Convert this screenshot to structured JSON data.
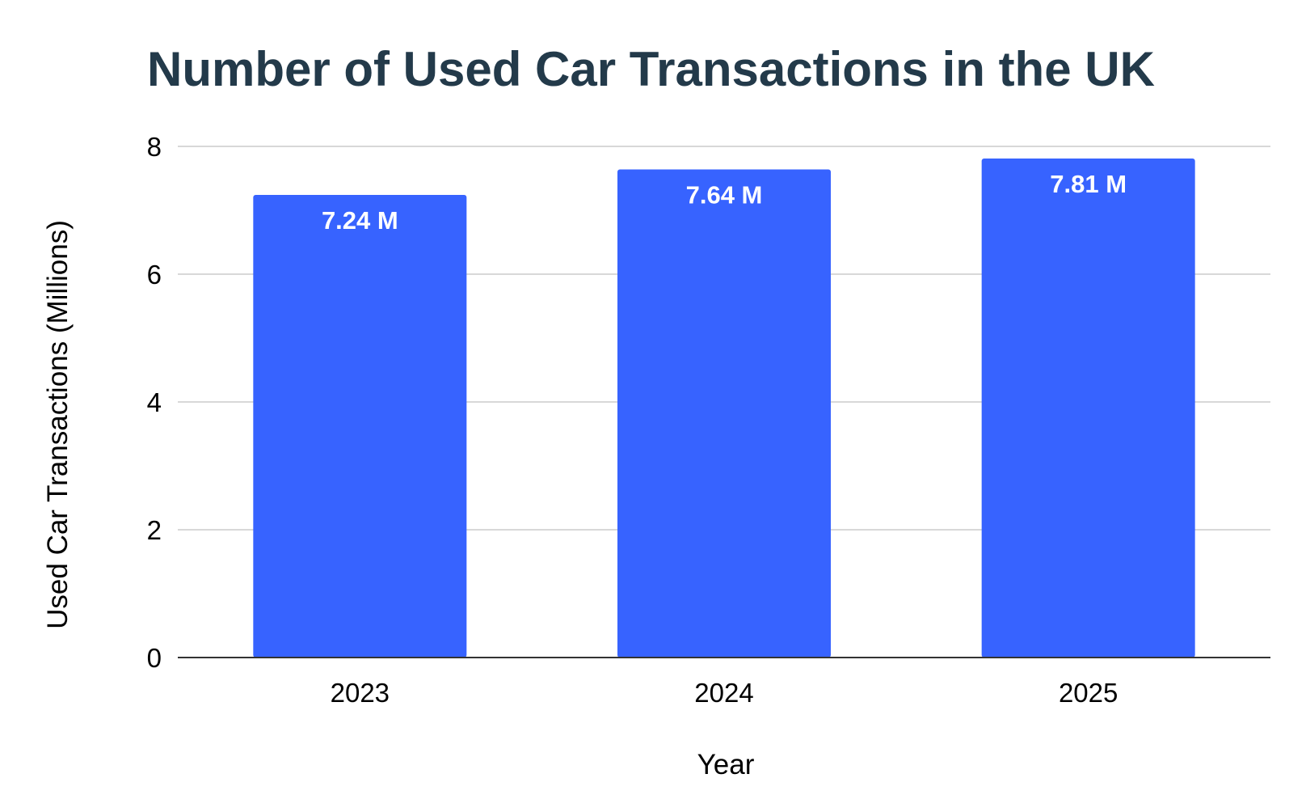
{
  "chart_data": {
    "type": "bar",
    "title": "Number of Used Car Transactions in the UK",
    "xlabel": "Year",
    "ylabel": "Used Car Transactions (Millions)",
    "categories": [
      "2023",
      "2024",
      "2025"
    ],
    "values": [
      7.24,
      7.64,
      7.81
    ],
    "value_labels": [
      "7.24 M",
      "7.64 M",
      "7.81 M"
    ],
    "ylim": [
      0,
      8
    ],
    "yticks": [
      0,
      2,
      4,
      6,
      8
    ],
    "grid": true,
    "legend": "none",
    "colors": {
      "bar": "#3763FF",
      "title": "#233A4A",
      "grid": "#CCCCCC",
      "axis": "#333333"
    }
  }
}
